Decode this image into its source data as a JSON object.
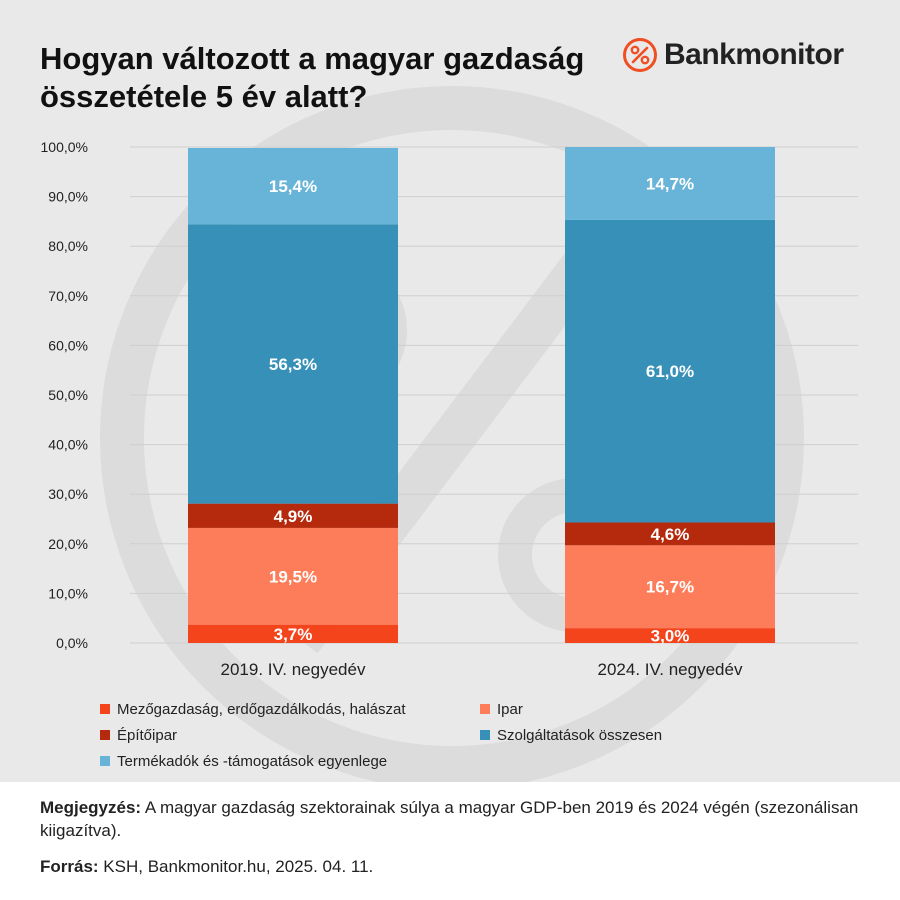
{
  "header": {
    "title": "Hogyan változott a magyar gazdaság összetétele 5 év alatt?",
    "brand": "Bankmonitor",
    "brand_icon": "percent-circle-icon",
    "brand_color": "#f04e23"
  },
  "chart_data": {
    "type": "bar",
    "stacked": true,
    "title": "Hogyan változott a magyar gazdaság összetétele 5 év alatt?",
    "categories": [
      "2019. IV. negyedév",
      "2024. IV. negyedév"
    ],
    "series": [
      {
        "name": "Mezőgazdaság, erdőgazdálkodás, halászat",
        "values": [
          3.7,
          3.0
        ],
        "labels": [
          "3,7%",
          "3,0%"
        ],
        "color": "#f4441c"
      },
      {
        "name": "Ipar",
        "values": [
          19.5,
          16.7
        ],
        "labels": [
          "19,5%",
          "16,7%"
        ],
        "color": "#fd7d5a"
      },
      {
        "name": "Építőipar",
        "values": [
          4.9,
          4.6
        ],
        "labels": [
          "4,9%",
          "4,6%"
        ],
        "color": "#b5290d"
      },
      {
        "name": "Szolgáltatások összesen",
        "values": [
          56.3,
          61.0
        ],
        "labels": [
          "56,3%",
          "61,0%"
        ],
        "color": "#3690b8"
      },
      {
        "name": "Termékadók és -támogatások egyenlege",
        "values": [
          15.4,
          14.7
        ],
        "labels": [
          "15,4%",
          "14,7%"
        ],
        "color": "#68b4d8"
      }
    ],
    "ylim": [
      0,
      100
    ],
    "yticks": [
      0,
      10,
      20,
      30,
      40,
      50,
      60,
      70,
      80,
      90,
      100
    ],
    "ytick_labels": [
      "0,0%",
      "10,0%",
      "20,0%",
      "30,0%",
      "40,0%",
      "50,0%",
      "60,0%",
      "70,0%",
      "80,0%",
      "90,0%",
      "100,0%"
    ],
    "xlabel": "",
    "ylabel": "",
    "grid": true,
    "legend_position": "bottom"
  },
  "notes": {
    "remark_label": "Megjegyzés:",
    "remark_text": " A magyar gazdaság szektorainak súlya a magyar GDP-ben 2019 és 2024 végén (szezonálisan kiigazítva).",
    "source_label": "Forrás:",
    "source_text": " KSH, Bankmonitor.hu, 2025. 04. 11."
  }
}
